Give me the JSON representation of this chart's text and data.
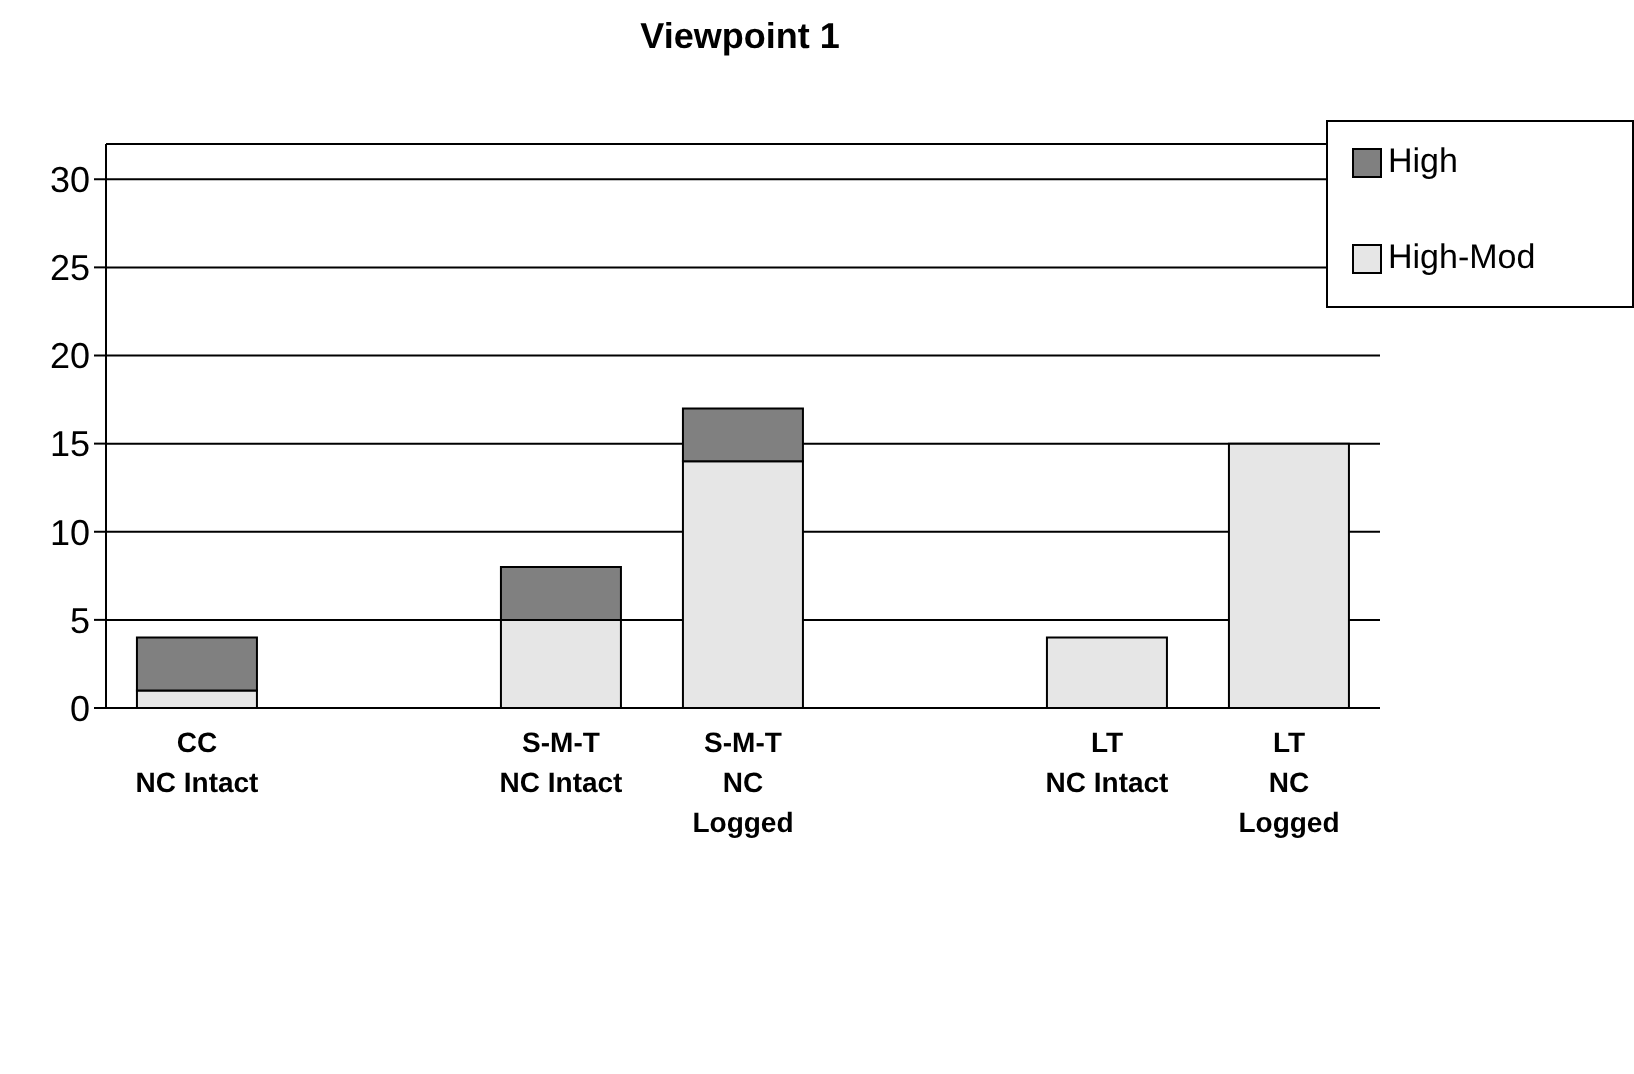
{
  "chart_data": {
    "type": "bar",
    "title": "Viewpoint 1",
    "stacked": true,
    "categories": [
      "CC\nNC Intact",
      null,
      "S-M-T\nNC Intact",
      "S-M-T\nNC\nLogged",
      null,
      "LT\nNC Intact",
      "LT\nNC\nLogged"
    ],
    "series": [
      {
        "name": "High-Mod",
        "color": "#e6e6e6",
        "values": [
          1,
          null,
          5,
          14,
          null,
          4,
          15
        ]
      },
      {
        "name": "High",
        "color": "#808080",
        "values": [
          3,
          null,
          3,
          3,
          null,
          null,
          null
        ]
      }
    ],
    "ylim": [
      0,
      32
    ],
    "yticks": [
      0,
      5,
      10,
      15,
      20,
      25,
      30
    ],
    "grid": "y",
    "legend": "top right"
  }
}
